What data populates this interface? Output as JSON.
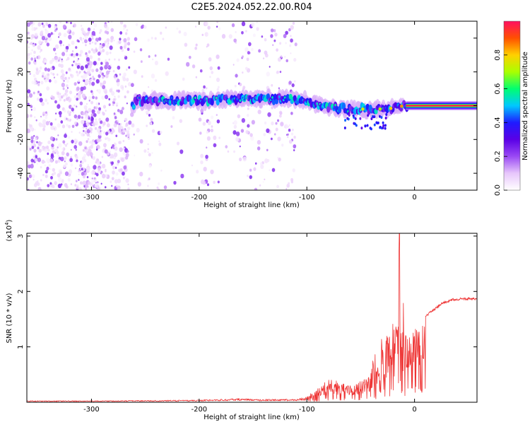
{
  "title": "C2E5.2024.052.22.00.R04",
  "chart_data": [
    {
      "type": "heatmap",
      "xlabel": "Height of straight line (km)",
      "ylabel": "Frequency (Hz)",
      "xlim": [
        -360,
        58
      ],
      "ylim": [
        -50,
        50
      ],
      "xticks": [
        -300,
        -200,
        -100,
        0
      ],
      "yticks": [
        -40,
        -20,
        0,
        20,
        40
      ],
      "colorbar": {
        "label": "Normalized spectral amplitude",
        "range": [
          0,
          1
        ],
        "ticks": [
          0.0,
          0.2,
          0.4,
          0.6,
          0.8
        ],
        "colors": [
          "#ffffff",
          "#e7c6fb",
          "#9a49f4",
          "#5a00e6",
          "#1f1bff",
          "#00c8ff",
          "#00ff70",
          "#aaff00",
          "#ffd000",
          "#ff5000",
          "#ff1060"
        ]
      },
      "trace_path": [
        [
          -260,
          3
        ],
        [
          -230,
          3
        ],
        [
          -200,
          3
        ],
        [
          -170,
          4
        ],
        [
          -140,
          4
        ],
        [
          -120,
          4
        ],
        [
          -100,
          3
        ],
        [
          -80,
          -1
        ],
        [
          -60,
          -2
        ],
        [
          -40,
          -2
        ],
        [
          -25,
          -2
        ],
        [
          -10,
          0
        ],
        [
          0,
          0
        ],
        [
          58,
          0
        ]
      ],
      "scatter_extent": {
        "x": [
          -360,
          -110
        ],
        "y": [
          -50,
          50
        ]
      },
      "grid": false
    },
    {
      "type": "line",
      "xlabel": "Height of straight line (km)",
      "ylabel": "SNR (10 * v/v)",
      "y_multiplier": "(x10^4)",
      "multiplier_base": "(x10",
      "multiplier_exp": "4",
      "multiplier_close": ")",
      "xlim": [
        -360,
        58
      ],
      "ylim": [
        0,
        3.05
      ],
      "xticks": [
        -300,
        -200,
        -100,
        0
      ],
      "yticks": [
        1,
        2,
        3
      ],
      "line_color": "#ee3333",
      "series": [
        {
          "x": [
            -360,
            -300,
            -200,
            -160,
            -150,
            -110,
            -100,
            -90,
            -80,
            -70,
            -60,
            -50,
            -40,
            -30,
            -25,
            -20,
            -15,
            -14,
            -13,
            -12,
            -10,
            -5,
            0,
            10,
            20,
            25,
            30,
            35,
            45,
            58
          ],
          "y": [
            0.02,
            0.02,
            0.03,
            0.05,
            0.04,
            0.04,
            0.08,
            0.2,
            0.35,
            0.3,
            0.25,
            0.3,
            0.45,
            0.75,
            0.85,
            1.0,
            1.05,
            3.05,
            1.1,
            0.9,
            1.25,
            1.35,
            1.45,
            1.55,
            1.7,
            1.78,
            1.82,
            1.85,
            1.87,
            1.86
          ]
        }
      ],
      "grid": false
    }
  ]
}
